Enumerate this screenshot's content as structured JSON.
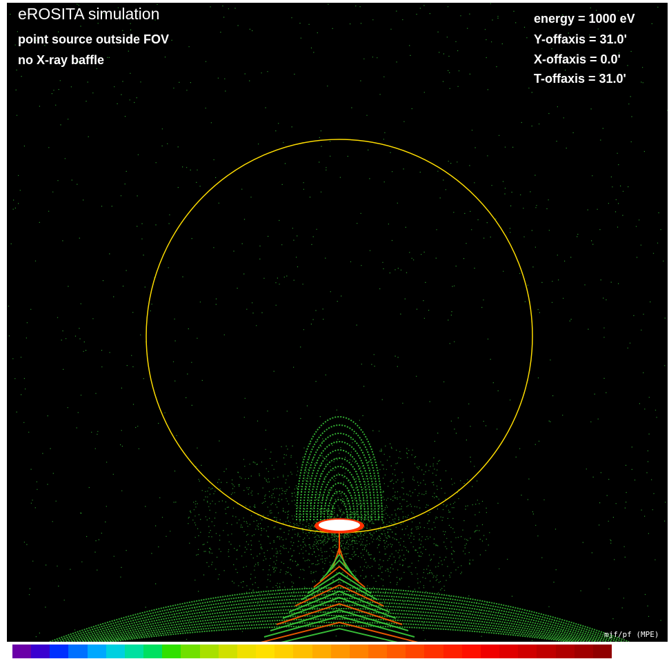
{
  "title": "eROSITA simulation",
  "subtitle_lines": [
    "point source outside FOV",
    "no X-ray baffle"
  ],
  "params": [
    "energy = 1000 eV",
    "Y-offaxis = 31.0'",
    "X-offaxis = 0.0'",
    "T-offaxis = 31.0'"
  ],
  "credit": "mjf/pf (MPE)",
  "colors": {
    "background": "#000000",
    "fov_circle": "#ffdd00",
    "photon_points": "#3ccf3c",
    "core": "#ffffff",
    "core_edge": "#ff3000"
  },
  "colorbar": [
    "#6a00a8",
    "#3a00d0",
    "#0030ff",
    "#0070ff",
    "#00a8ff",
    "#00d0e0",
    "#00e0a0",
    "#00e060",
    "#30e000",
    "#70e000",
    "#a8e000",
    "#d0e000",
    "#f0e000",
    "#ffe000",
    "#ffd000",
    "#ffbf00",
    "#ffab00",
    "#ff9600",
    "#ff8200",
    "#ff6e00",
    "#ff5a00",
    "#ff4600",
    "#ff3200",
    "#ff2000",
    "#ff1000",
    "#f00000",
    "#e00000",
    "#d00000",
    "#c00000",
    "#b00000",
    "#a00000",
    "#900000"
  ]
}
